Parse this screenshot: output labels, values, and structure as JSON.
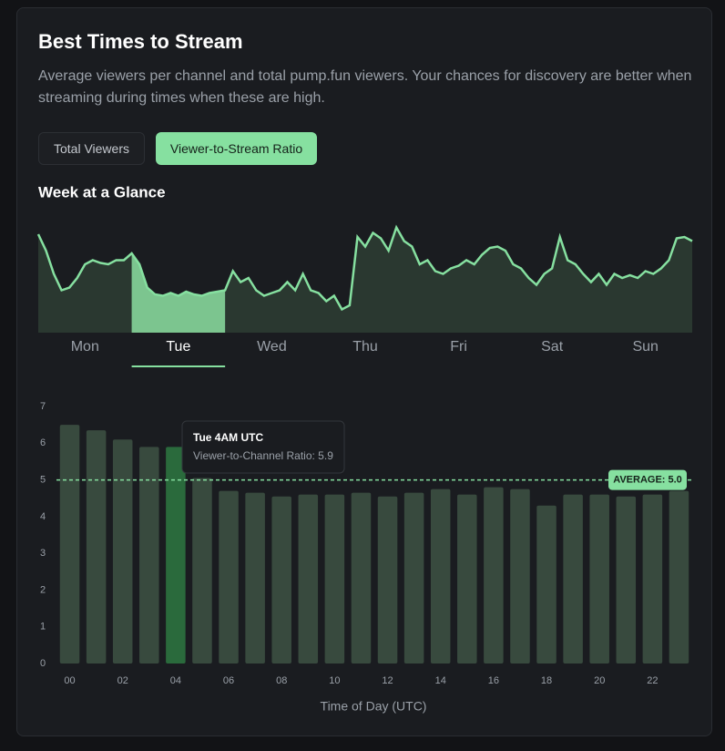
{
  "header": {
    "title": "Best Times to Stream",
    "description": "Average viewers per channel and total pump.fun viewers. Your chances for discovery are better when streaming during times when these are high."
  },
  "tabs": [
    {
      "label": "Total Viewers",
      "active": false
    },
    {
      "label": "Viewer-to-Stream Ratio",
      "active": true
    }
  ],
  "week_chart": {
    "type": "area",
    "title": "Week at a Glance",
    "days": [
      "Mon",
      "Tue",
      "Wed",
      "Thu",
      "Fri",
      "Sat",
      "Sun"
    ],
    "selected_day": 1,
    "color": "#86e0a0",
    "ylim": [
      0,
      8
    ],
    "values": [
      7.2,
      6.0,
      4.3,
      3.1,
      3.3,
      4.0,
      5.0,
      5.3,
      5.1,
      5.0,
      5.3,
      5.3,
      5.8,
      5.0,
      3.3,
      2.8,
      2.7,
      2.9,
      2.7,
      3.0,
      2.8,
      2.7,
      2.9,
      3.0,
      3.1,
      4.5,
      3.7,
      4.0,
      3.1,
      2.7,
      2.9,
      3.1,
      3.7,
      3.1,
      4.3,
      3.1,
      2.9,
      2.3,
      2.7,
      1.7,
      2.0,
      7.0,
      6.3,
      7.3,
      6.9,
      6.0,
      7.7,
      6.7,
      6.3,
      5.0,
      5.3,
      4.5,
      4.3,
      4.7,
      4.9,
      5.3,
      5.0,
      5.7,
      6.2,
      6.3,
      6.0,
      5.0,
      4.7,
      4.0,
      3.5,
      4.3,
      4.7,
      7.0,
      5.3,
      5.0,
      4.3,
      3.7,
      4.3,
      3.5,
      4.3,
      4.0,
      4.2,
      4.0,
      4.5,
      4.3,
      4.7,
      5.3,
      6.9,
      7.0,
      6.7
    ]
  },
  "chart_data": {
    "type": "bar",
    "x_label": "Time of Day (UTC)",
    "categories": [
      "00",
      null,
      "02",
      null,
      "04",
      null,
      "06",
      null,
      "08",
      null,
      "10",
      null,
      "12",
      null,
      "14",
      null,
      "16",
      null,
      "18",
      null,
      "20",
      null,
      "22",
      null
    ],
    "values": [
      6.5,
      6.35,
      6.1,
      5.9,
      5.9,
      5.05,
      4.7,
      4.65,
      4.55,
      4.6,
      4.6,
      4.65,
      4.55,
      4.65,
      4.75,
      4.6,
      4.8,
      4.75,
      4.3,
      4.6,
      4.6,
      4.55,
      4.6,
      4.7
    ],
    "color": "#384a3e",
    "highlight_index": 4,
    "highlight_color": "#2a6a3c",
    "ylim": [
      0,
      7
    ],
    "yticks": [
      0,
      1,
      2,
      3,
      4,
      5,
      6,
      7
    ],
    "average": {
      "value": 5.0,
      "label": "AVERAGE: 5.0"
    },
    "tooltip": {
      "title": "Tue 4AM UTC",
      "text": "Viewer-to-Channel Ratio: 5.9"
    }
  }
}
